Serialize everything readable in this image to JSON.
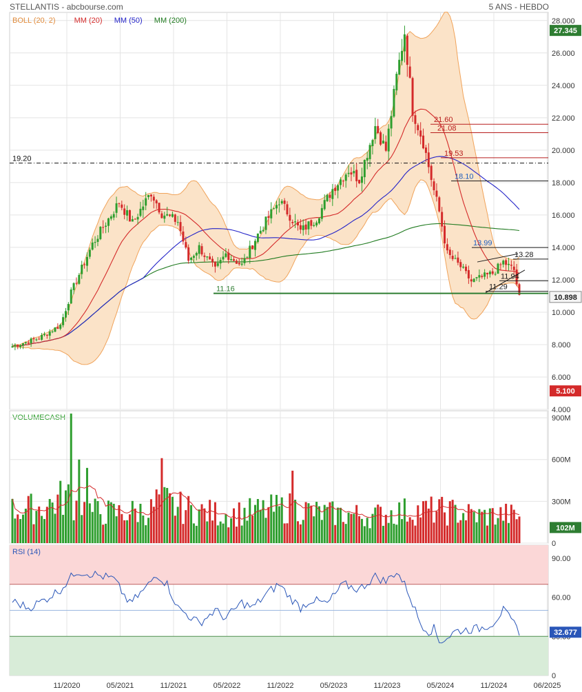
{
  "header": {
    "title": "STELLANTIS - abcbourse.com",
    "period": "5 ANS - HEBDO"
  },
  "colors": {
    "up": "#2e9e2e",
    "down": "#d42a2a",
    "boll_band": "#f0a35a",
    "boll_fill": "#fbe3c8",
    "ma20": "#d42a2a",
    "ma50": "#2222c8",
    "ma200": "#1f7a1f",
    "rsi_line": "#2a56b8",
    "rsi_over": "#fbd7d7",
    "rsi_under": "#d8ecd8",
    "last_price_badge": "#2e7d32",
    "sell_badge": "#d42a2a",
    "label_blue": "#1f5fbf",
    "grid": "#e4e4e4"
  },
  "chart_data": [
    {
      "type": "candlestick",
      "name": "price",
      "legend": [
        {
          "label": "BOLL (20, 2)",
          "color": "#e08a3a"
        },
        {
          "label": "MM (20)",
          "color": "#d42a2a"
        },
        {
          "label": "MM (50)",
          "color": "#2222c8"
        },
        {
          "label": "MM (200)",
          "color": "#1f7a1f"
        }
      ],
      "x_ticks": [
        "11/2020",
        "05/2021",
        "11/2021",
        "05/2022",
        "11/2022",
        "05/2023",
        "11/2023",
        "05/2024",
        "11/2024",
        "06/2025"
      ],
      "y_ticks": [
        "28.000",
        "26.000",
        "24.000",
        "22.000",
        "20.000",
        "18.000",
        "16.000",
        "14.000",
        "12.000",
        "10.000",
        "8.000",
        "6.000",
        "4.000"
      ],
      "ylim": [
        4,
        28.5
      ],
      "last_price": "10.898",
      "high_badge": "27.345",
      "low_badge": "5.100",
      "close_anchors": [
        [
          0,
          7.9
        ],
        [
          10,
          8.4
        ],
        [
          18,
          9.2
        ],
        [
          22,
          11.2
        ],
        [
          30,
          14.2
        ],
        [
          40,
          16.8
        ],
        [
          45,
          15.5
        ],
        [
          52,
          17.4
        ],
        [
          56,
          16.1
        ],
        [
          62,
          15.6
        ],
        [
          66,
          13.2
        ],
        [
          70,
          14.0
        ],
        [
          76,
          12.6
        ],
        [
          80,
          13.6
        ],
        [
          86,
          12.9
        ],
        [
          92,
          14.8
        ],
        [
          100,
          16.9
        ],
        [
          108,
          15.0
        ],
        [
          114,
          15.8
        ],
        [
          120,
          17.6
        ],
        [
          126,
          18.8
        ],
        [
          130,
          18.2
        ],
        [
          136,
          21.5
        ],
        [
          140,
          20.0
        ],
        [
          144,
          24.5
        ],
        [
          147,
          27.3
        ],
        [
          150,
          22.5
        ],
        [
          154,
          20.5
        ],
        [
          158,
          17.5
        ],
        [
          160,
          16.2
        ],
        [
          163,
          13.6
        ],
        [
          168,
          12.8
        ],
        [
          172,
          11.9
        ],
        [
          180,
          12.4
        ],
        [
          184,
          13.1
        ],
        [
          188,
          12.6
        ],
        [
          190,
          10.9
        ]
      ],
      "lines": [
        {
          "label": "19.20",
          "value": 19.2,
          "style": "dashdot",
          "color": "#111111"
        },
        {
          "label": "21.60",
          "value": 21.6,
          "color": "#b71c1c"
        },
        {
          "label": "21.08",
          "value": 21.08,
          "color": "#b71c1c"
        },
        {
          "label": "19.53",
          "value": 19.53,
          "color": "#b71c1c"
        },
        {
          "label": "18.10",
          "value": 18.1,
          "color": "#1a1a1a"
        },
        {
          "label": "13.99",
          "value": 13.99,
          "color": "#1a1a1a"
        },
        {
          "label": "13.28",
          "value": 13.28,
          "color": "#1a1a1a"
        },
        {
          "label": "11.94",
          "value": 11.94,
          "color": "#1a1a1a"
        },
        {
          "label": "11.29",
          "value": 11.29,
          "color": "#1a1a1a"
        },
        {
          "label": "11.16",
          "value": 11.16,
          "color": "#2e7d32"
        }
      ]
    },
    {
      "type": "bar",
      "name": "volume",
      "title": "VOLUMECASH",
      "y_ticks": [
        "900M",
        "600M",
        "300M",
        "0"
      ],
      "ylim": [
        0,
        950
      ],
      "last_value": "102M",
      "level_anchors": [
        [
          0,
          230
        ],
        [
          12,
          250
        ],
        [
          20,
          330
        ],
        [
          24,
          270
        ],
        [
          30,
          220
        ],
        [
          40,
          210
        ],
        [
          52,
          230
        ],
        [
          55,
          320
        ],
        [
          60,
          260
        ],
        [
          70,
          220
        ],
        [
          80,
          200
        ],
        [
          95,
          230
        ],
        [
          105,
          250
        ],
        [
          115,
          210
        ],
        [
          125,
          200
        ],
        [
          135,
          190
        ],
        [
          145,
          220
        ],
        [
          155,
          230
        ],
        [
          165,
          220
        ],
        [
          175,
          190
        ],
        [
          185,
          200
        ],
        [
          190,
          180
        ]
      ]
    },
    {
      "type": "line",
      "name": "rsi",
      "title": "RSI (14)",
      "y_ticks": [
        "90.00",
        "60.00",
        "30.00",
        "0"
      ],
      "ylim": [
        0,
        100
      ],
      "last_value": "32.677",
      "rsi_anchors": [
        [
          0,
          57
        ],
        [
          6,
          52
        ],
        [
          12,
          58
        ],
        [
          18,
          66
        ],
        [
          24,
          80
        ],
        [
          30,
          78
        ],
        [
          38,
          74
        ],
        [
          44,
          55
        ],
        [
          50,
          67
        ],
        [
          54,
          78
        ],
        [
          58,
          70
        ],
        [
          62,
          52
        ],
        [
          66,
          46
        ],
        [
          70,
          40
        ],
        [
          76,
          50
        ],
        [
          80,
          44
        ],
        [
          86,
          56
        ],
        [
          90,
          52
        ],
        [
          96,
          64
        ],
        [
          100,
          70
        ],
        [
          104,
          60
        ],
        [
          108,
          52
        ],
        [
          112,
          58
        ],
        [
          118,
          55
        ],
        [
          124,
          70
        ],
        [
          130,
          66
        ],
        [
          136,
          76
        ],
        [
          140,
          72
        ],
        [
          144,
          80
        ],
        [
          148,
          66
        ],
        [
          150,
          55
        ],
        [
          153,
          40
        ],
        [
          156,
          34
        ],
        [
          158,
          36
        ],
        [
          160,
          26
        ],
        [
          163,
          29
        ],
        [
          166,
          34
        ],
        [
          170,
          35
        ],
        [
          175,
          36
        ],
        [
          180,
          40
        ],
        [
          184,
          50
        ],
        [
          187,
          42
        ],
        [
          190,
          34
        ]
      ]
    }
  ]
}
